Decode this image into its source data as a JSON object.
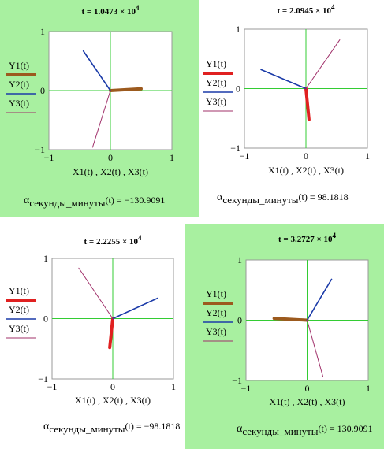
{
  "chart_data": [
    {
      "type": "line",
      "background": "#a8f0a0",
      "title": "t = 1.0473 × 10",
      "title_exponent": "4",
      "x_label": "X1(t) , X2(t) , X3(t)",
      "annotation": {
        "symbol": "α",
        "subscript": "секунды_минуты",
        "text": "(t) = −130.9091"
      },
      "xlim": [
        -1,
        1
      ],
      "ylim": [
        -1,
        1
      ],
      "xticks": [
        {
          "value": -1,
          "label": "−1"
        },
        0,
        1
      ],
      "yticks": [
        {
          "value": -1,
          "label": "−1"
        },
        0,
        1
      ],
      "zero_lines": true,
      "series": [
        {
          "name": "Y1(t)",
          "color": "#9c5a1e",
          "line_width": 4,
          "x": [
            0,
            0.5
          ],
          "values": [
            0,
            0.03
          ]
        },
        {
          "name": "Y2(t)",
          "color": "#1a3aa8",
          "line_width": 1.6,
          "x": [
            0,
            -0.44
          ],
          "values": [
            0,
            0.67
          ]
        },
        {
          "name": "Y3(t)",
          "color": "#a0306a",
          "line_width": 1,
          "x": [
            0,
            -0.29
          ],
          "values": [
            0,
            -0.96
          ]
        }
      ]
    },
    {
      "type": "line",
      "title": "t = 2.0945 × 10",
      "title_exponent": "4",
      "x_label": "X1(t) , X2(t) , X3(t)",
      "annotation": {
        "symbol": "α",
        "subscript": "секунды_минуты",
        "text": "(t) = 98.1818"
      },
      "xlim": [
        -1,
        1
      ],
      "ylim": [
        -1,
        1
      ],
      "xticks": [
        {
          "value": -1,
          "label": "−1"
        },
        0,
        1
      ],
      "yticks": [
        {
          "value": -1,
          "label": "−1"
        },
        0,
        1
      ],
      "zero_lines": true,
      "series": [
        {
          "name": "Y1(t)",
          "color": "#e02020",
          "line_width": 4,
          "x": [
            0,
            0.05
          ],
          "values": [
            0,
            -0.52
          ]
        },
        {
          "name": "Y2(t)",
          "color": "#1a3aa8",
          "line_width": 1.6,
          "x": [
            0,
            -0.73
          ],
          "values": [
            0,
            0.32
          ]
        },
        {
          "name": "Y3(t)",
          "color": "#a0306a",
          "line_width": 1,
          "x": [
            0,
            0.55
          ],
          "values": [
            0,
            0.82
          ]
        }
      ]
    },
    {
      "type": "line",
      "title": "t = 2.2255 × 10",
      "title_exponent": "4",
      "x_label": "X1(t) , X2(t) , X3(t)",
      "annotation": {
        "symbol": "α",
        "subscript": "секунды_минуты",
        "text": "(t) = −98.1818"
      },
      "xlim": [
        -1,
        1
      ],
      "ylim": [
        -1,
        1
      ],
      "xticks": [
        {
          "value": -1,
          "label": "−1"
        },
        0,
        1
      ],
      "yticks": [
        {
          "value": -1,
          "label": "−1"
        },
        0,
        1
      ],
      "zero_lines": true,
      "series": [
        {
          "name": "Y1(t)",
          "color": "#e02020",
          "line_width": 4,
          "x": [
            0,
            -0.05
          ],
          "values": [
            0,
            -0.48
          ]
        },
        {
          "name": "Y2(t)",
          "color": "#1a3aa8",
          "line_width": 1.6,
          "x": [
            0,
            0.74
          ],
          "values": [
            0,
            0.34
          ]
        },
        {
          "name": "Y3(t)",
          "color": "#a0306a",
          "line_width": 1,
          "x": [
            0,
            -0.56
          ],
          "values": [
            0,
            0.84
          ]
        }
      ]
    },
    {
      "type": "line",
      "background": "#a8f0a0",
      "title": "t = 3.2727 × 10",
      "title_exponent": "4",
      "x_label": "X1(t) , X2(t) , X3(t)",
      "annotation": {
        "symbol": "α",
        "subscript": "секунды_минуты",
        "text": "(t) = 130.9091"
      },
      "xlim": [
        -1,
        1
      ],
      "ylim": [
        -1,
        1
      ],
      "xticks": [
        {
          "value": -1,
          "label": "−1"
        },
        0,
        1
      ],
      "yticks": [
        {
          "value": -1,
          "label": "−1"
        },
        0,
        1
      ],
      "zero_lines": true,
      "series": [
        {
          "name": "Y1(t)",
          "color": "#9c5a1e",
          "line_width": 4,
          "x": [
            0,
            -0.54
          ],
          "values": [
            0,
            0.03
          ]
        },
        {
          "name": "Y2(t)",
          "color": "#1a3aa8",
          "line_width": 1.6,
          "x": [
            0,
            0.4
          ],
          "values": [
            0,
            0.68
          ]
        },
        {
          "name": "Y3(t)",
          "color": "#a0306a",
          "line_width": 1,
          "x": [
            0,
            0.26
          ],
          "values": [
            0,
            -0.94
          ]
        }
      ]
    }
  ]
}
